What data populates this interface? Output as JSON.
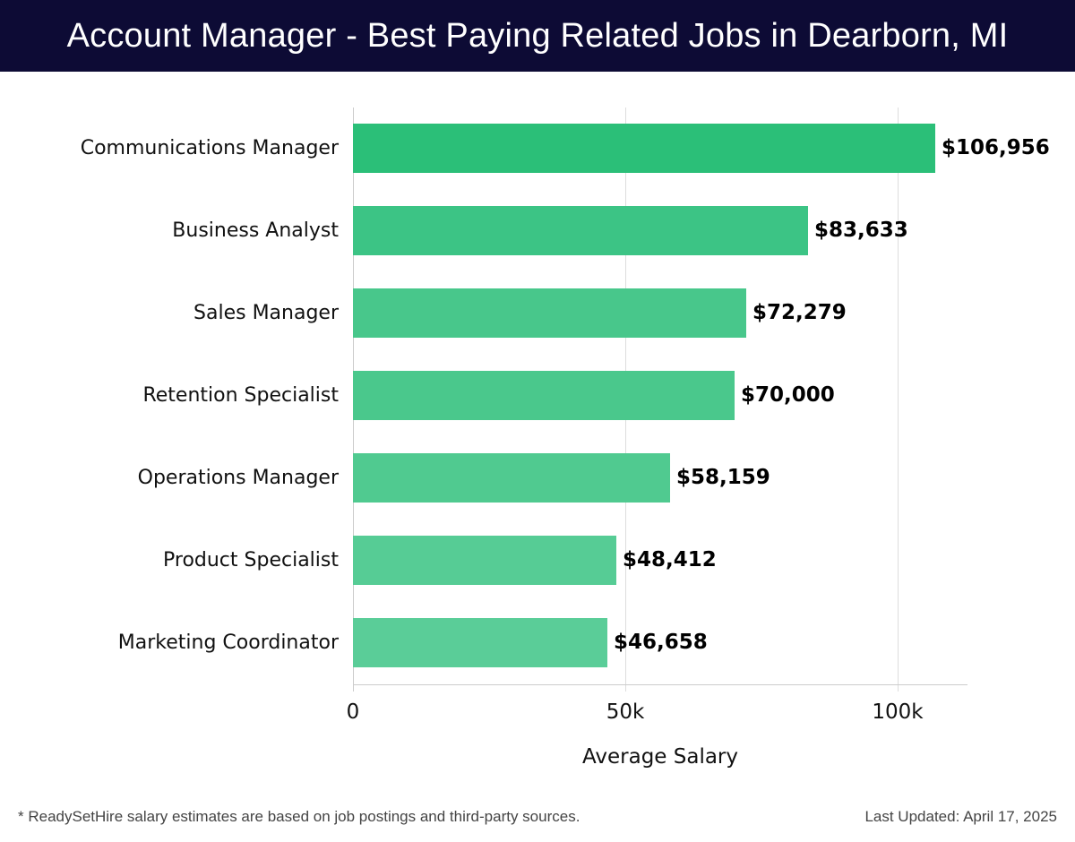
{
  "header": {
    "title": "Account Manager - Best Paying Related Jobs in Dearborn, MI"
  },
  "chart_data": {
    "type": "bar",
    "orientation": "horizontal",
    "title": "Account Manager - Best Paying Related Jobs in Dearborn, MI",
    "xlabel": "Average Salary",
    "ylabel": "",
    "categories": [
      "Communications Manager",
      "Business Analyst",
      "Sales Manager",
      "Retention Specialist",
      "Operations Manager",
      "Product Specialist",
      "Marketing Coordinator"
    ],
    "values": [
      106956,
      83633,
      72279,
      70000,
      58159,
      48412,
      46658
    ],
    "value_labels": [
      "$106,956",
      "$83,633",
      "$72,279",
      "$70,000",
      "$58,159",
      "$48,412",
      "$46,658"
    ],
    "bar_colors": [
      "#2bbf78",
      "#3cc485",
      "#48c78b",
      "#4ac88c",
      "#50ca90",
      "#56cc95",
      "#5acd98"
    ],
    "xticks": [
      0,
      50000,
      100000
    ],
    "xtick_labels": [
      "0",
      "50k",
      "100k"
    ],
    "xlim": [
      0,
      112800
    ],
    "grid": {
      "x": true,
      "y": false
    },
    "legend": null
  },
  "footer": {
    "note": "* ReadySetHire salary estimates are based on job postings and third-party sources.",
    "updated": "Last Updated: April 17, 2025"
  }
}
